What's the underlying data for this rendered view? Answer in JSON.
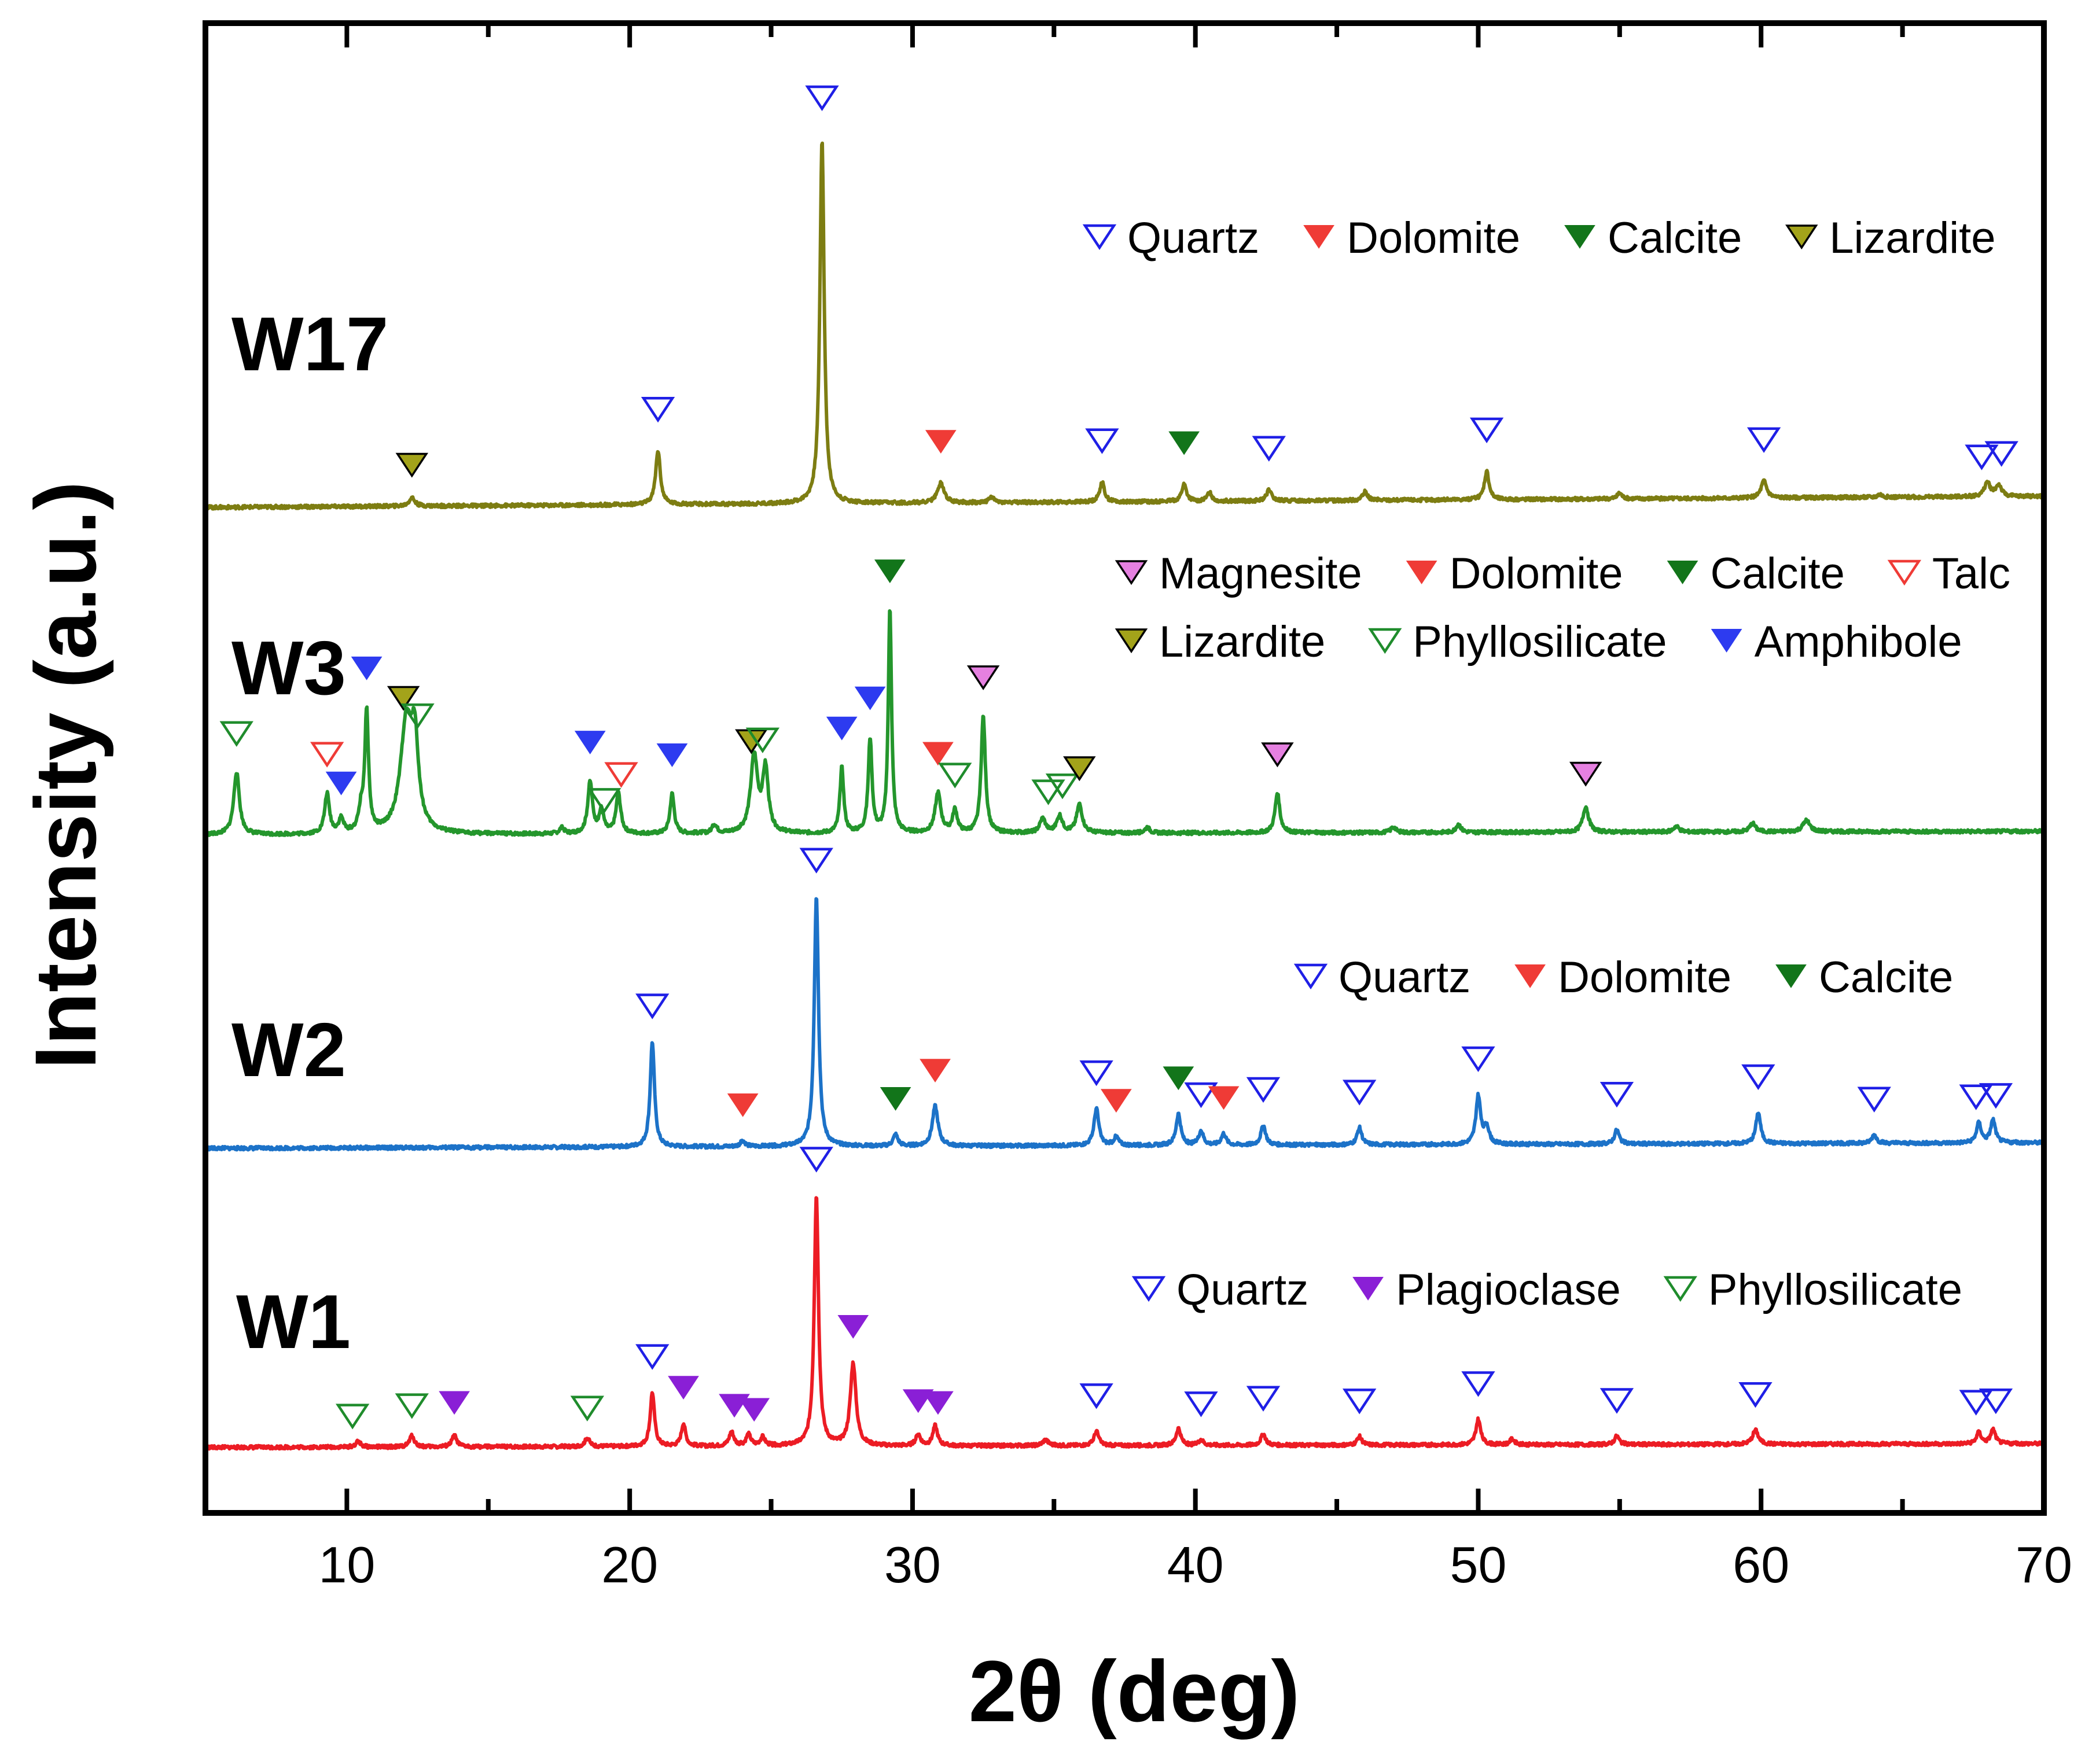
{
  "chart_data": {
    "type": "line",
    "title": "",
    "xlabel": "2θ (deg)",
    "ylabel": "Intensity (a.u.)",
    "xlim": [
      5,
      70
    ],
    "xticks": [
      10,
      20,
      30,
      40,
      50,
      60,
      70
    ],
    "grid": false,
    "colors": {
      "Quartz": "#1f1fe6",
      "Dolomite": "#ef3b36",
      "Calcite": "#12751a",
      "Lizardite": "#a3a31a",
      "Magnesite": "#e580e0",
      "Talc": "#ef3b36",
      "Phyllosilicate": "#1f8c2c",
      "Amphibole": "#2d3bf0",
      "Plagioclase": "#8a1fd6"
    },
    "series": [
      {
        "name": "W17",
        "color": "#7d7d12",
        "baseline": 3.35,
        "slope": 0.0006,
        "peaks": [
          [
            12.3,
            0.03,
            0.12
          ],
          [
            21.0,
            0.19,
            0.1
          ],
          [
            26.8,
            1.28,
            0.09
          ],
          [
            31.0,
            0.07,
            0.14
          ],
          [
            32.8,
            0.02,
            0.1
          ],
          [
            36.7,
            0.07,
            0.1
          ],
          [
            39.6,
            0.06,
            0.1
          ],
          [
            40.5,
            0.03,
            0.1
          ],
          [
            42.6,
            0.04,
            0.1
          ],
          [
            46.0,
            0.03,
            0.1
          ],
          [
            50.3,
            0.1,
            0.1
          ],
          [
            55.0,
            0.02,
            0.1
          ],
          [
            60.1,
            0.06,
            0.12
          ],
          [
            64.2,
            0.01,
            0.1
          ],
          [
            68.0,
            0.05,
            0.12
          ],
          [
            68.4,
            0.04,
            0.12
          ]
        ],
        "markers": [
          {
            "x": 12.3,
            "phase": "Lizardite",
            "lift": 0.06
          },
          {
            "x": 21.0,
            "phase": "Quartz",
            "lift": 0.09
          },
          {
            "x": 26.8,
            "phase": "Quartz",
            "lift": 0.09
          },
          {
            "x": 31.0,
            "phase": "Dolomite",
            "lift": 0.09
          },
          {
            "x": 36.7,
            "phase": "Quartz",
            "lift": 0.09
          },
          {
            "x": 39.6,
            "phase": "Calcite",
            "lift": 0.09
          },
          {
            "x": 42.6,
            "phase": "Quartz",
            "lift": 0.09
          },
          {
            "x": 50.3,
            "phase": "Quartz",
            "lift": 0.09
          },
          {
            "x": 60.1,
            "phase": "Quartz",
            "lift": 0.09
          },
          {
            "x": 67.8,
            "phase": "Quartz",
            "lift": 0.07
          },
          {
            "x": 68.5,
            "phase": "Quartz",
            "lift": 0.07
          }
        ]
      },
      {
        "name": "W3",
        "color": "#24962c",
        "baseline": 2.2,
        "slope": 0.0002,
        "peaks": [
          [
            6.1,
            0.22,
            0.12
          ],
          [
            9.3,
            0.14,
            0.1
          ],
          [
            9.8,
            0.05,
            0.1
          ],
          [
            10.5,
            0.07,
            0.1
          ],
          [
            10.7,
            0.42,
            0.08
          ],
          [
            12.1,
            0.38,
            0.25
          ],
          [
            12.4,
            0.28,
            0.15
          ],
          [
            17.6,
            0.02,
            0.1
          ],
          [
            18.6,
            0.18,
            0.1
          ],
          [
            19.0,
            0.08,
            0.1
          ],
          [
            19.6,
            0.14,
            0.1
          ],
          [
            21.5,
            0.14,
            0.09
          ],
          [
            23.0,
            0.03,
            0.1
          ],
          [
            24.4,
            0.27,
            0.15
          ],
          [
            24.8,
            0.22,
            0.12
          ],
          [
            27.5,
            0.23,
            0.08
          ],
          [
            28.5,
            0.33,
            0.08
          ],
          [
            29.2,
            0.79,
            0.07
          ],
          [
            30.9,
            0.14,
            0.12
          ],
          [
            31.5,
            0.08,
            0.1
          ],
          [
            32.5,
            0.41,
            0.09
          ],
          [
            34.6,
            0.05,
            0.12
          ],
          [
            35.2,
            0.06,
            0.12
          ],
          [
            35.9,
            0.1,
            0.12
          ],
          [
            38.3,
            0.02,
            0.1
          ],
          [
            42.9,
            0.14,
            0.1
          ],
          [
            47.0,
            0.02,
            0.1
          ],
          [
            49.3,
            0.03,
            0.1
          ],
          [
            53.8,
            0.09,
            0.12
          ],
          [
            57.0,
            0.02,
            0.12
          ],
          [
            59.7,
            0.03,
            0.12
          ],
          [
            61.6,
            0.04,
            0.15
          ]
        ],
        "markers": [
          {
            "x": 6.1,
            "phase": "Phyllosilicate",
            "lift": 0.08
          },
          {
            "x": 9.3,
            "phase": "Talc",
            "lift": 0.08
          },
          {
            "x": 9.8,
            "phase": "Amphibole",
            "lift": 0.06
          },
          {
            "x": 10.7,
            "phase": "Amphibole",
            "lift": 0.08
          },
          {
            "x": 12.0,
            "phase": "Lizardite",
            "lift": 0.06
          },
          {
            "x": 12.5,
            "phase": "Phyllosilicate",
            "lift": 0.06
          },
          {
            "x": 18.6,
            "phase": "Amphibole",
            "lift": 0.08
          },
          {
            "x": 19.1,
            "phase": "Phyllosilicate",
            "lift": 0.01
          },
          {
            "x": 19.7,
            "phase": "Talc",
            "lift": 0.08
          },
          {
            "x": 21.5,
            "phase": "Amphibole",
            "lift": 0.08
          },
          {
            "x": 24.3,
            "phase": "Lizardite",
            "lift": 0.07
          },
          {
            "x": 24.7,
            "phase": "Phyllosilicate",
            "lift": 0.09
          },
          {
            "x": 27.5,
            "phase": "Amphibole",
            "lift": 0.08
          },
          {
            "x": 28.5,
            "phase": "Amphibole",
            "lift": 0.08
          },
          {
            "x": 29.2,
            "phase": "Calcite",
            "lift": 0.07
          },
          {
            "x": 30.9,
            "phase": "Dolomite",
            "lift": 0.08
          },
          {
            "x": 31.5,
            "phase": "Phyllosilicate",
            "lift": 0.06
          },
          {
            "x": 32.5,
            "phase": "Magnesite",
            "lift": 0.08
          },
          {
            "x": 34.8,
            "phase": "Phyllosilicate",
            "lift": 0.07
          },
          {
            "x": 35.3,
            "phase": "Phyllosilicate",
            "lift": 0.07
          },
          {
            "x": 35.9,
            "phase": "Lizardite",
            "lift": 0.07
          },
          {
            "x": 42.9,
            "phase": "Magnesite",
            "lift": 0.08
          },
          {
            "x": 53.8,
            "phase": "Magnesite",
            "lift": 0.06
          }
        ]
      },
      {
        "name": "W2",
        "color": "#1c72c8",
        "baseline": 1.1,
        "slope": 0.0003,
        "peaks": [
          [
            20.8,
            0.37,
            0.09
          ],
          [
            24.0,
            0.02,
            0.1
          ],
          [
            26.6,
            0.88,
            0.09
          ],
          [
            29.4,
            0.04,
            0.1
          ],
          [
            30.8,
            0.14,
            0.12
          ],
          [
            36.5,
            0.13,
            0.1
          ],
          [
            37.2,
            0.03,
            0.1
          ],
          [
            39.4,
            0.11,
            0.1
          ],
          [
            40.2,
            0.05,
            0.1
          ],
          [
            41.0,
            0.04,
            0.1
          ],
          [
            42.4,
            0.07,
            0.1
          ],
          [
            45.8,
            0.06,
            0.1
          ],
          [
            50.0,
            0.17,
            0.1
          ],
          [
            50.3,
            0.06,
            0.1
          ],
          [
            54.9,
            0.05,
            0.1
          ],
          [
            59.9,
            0.11,
            0.1
          ],
          [
            64.0,
            0.03,
            0.1
          ],
          [
            67.7,
            0.07,
            0.1
          ],
          [
            68.2,
            0.08,
            0.1
          ]
        ],
        "markers": [
          {
            "x": 20.8,
            "phase": "Quartz",
            "lift": 0.07
          },
          {
            "x": 24.0,
            "phase": "Dolomite",
            "lift": 0.07
          },
          {
            "x": 26.6,
            "phase": "Quartz",
            "lift": 0.07
          },
          {
            "x": 29.4,
            "phase": "Calcite",
            "lift": 0.07
          },
          {
            "x": 30.8,
            "phase": "Dolomite",
            "lift": 0.07
          },
          {
            "x": 36.5,
            "phase": "Quartz",
            "lift": 0.07
          },
          {
            "x": 37.2,
            "phase": "Dolomite",
            "lift": 0.07
          },
          {
            "x": 39.4,
            "phase": "Calcite",
            "lift": 0.07
          },
          {
            "x": 40.2,
            "phase": "Quartz",
            "lift": 0.07
          },
          {
            "x": 41.0,
            "phase": "Dolomite",
            "lift": 0.07
          },
          {
            "x": 42.4,
            "phase": "Quartz",
            "lift": 0.07
          },
          {
            "x": 45.8,
            "phase": "Quartz",
            "lift": 0.07
          },
          {
            "x": 50.0,
            "phase": "Quartz",
            "lift": 0.07
          },
          {
            "x": 54.9,
            "phase": "Quartz",
            "lift": 0.07
          },
          {
            "x": 59.9,
            "phase": "Quartz",
            "lift": 0.07
          },
          {
            "x": 64.0,
            "phase": "Quartz",
            "lift": 0.07
          },
          {
            "x": 67.6,
            "phase": "Quartz",
            "lift": 0.07
          },
          {
            "x": 68.3,
            "phase": "Quartz",
            "lift": 0.07
          }
        ]
      },
      {
        "name": "W1",
        "color": "#ec1c24",
        "baseline": 0.05,
        "slope": 0.0002,
        "peaks": [
          [
            10.4,
            0.02,
            0.1
          ],
          [
            12.3,
            0.04,
            0.1
          ],
          [
            13.8,
            0.04,
            0.1
          ],
          [
            18.5,
            0.03,
            0.1
          ],
          [
            20.8,
            0.19,
            0.09
          ],
          [
            21.9,
            0.08,
            0.09
          ],
          [
            23.6,
            0.05,
            0.1
          ],
          [
            24.2,
            0.04,
            0.1
          ],
          [
            24.7,
            0.03,
            0.1
          ],
          [
            26.6,
            0.88,
            0.09
          ],
          [
            27.9,
            0.29,
            0.12
          ],
          [
            30.2,
            0.04,
            0.1
          ],
          [
            30.8,
            0.07,
            0.1
          ],
          [
            34.7,
            0.02,
            0.12
          ],
          [
            36.5,
            0.05,
            0.1
          ],
          [
            39.4,
            0.06,
            0.1
          ],
          [
            40.2,
            0.02,
            0.1
          ],
          [
            42.4,
            0.04,
            0.1
          ],
          [
            45.8,
            0.03,
            0.1
          ],
          [
            50.0,
            0.09,
            0.1
          ],
          [
            51.2,
            0.02,
            0.1
          ],
          [
            54.9,
            0.03,
            0.1
          ],
          [
            59.8,
            0.05,
            0.12
          ],
          [
            67.7,
            0.04,
            0.1
          ],
          [
            68.2,
            0.05,
            0.1
          ]
        ],
        "markers": [
          {
            "x": 10.2,
            "phase": "Phyllosilicate",
            "lift": 0.05
          },
          {
            "x": 12.3,
            "phase": "Phyllosilicate",
            "lift": 0.05
          },
          {
            "x": 13.8,
            "phase": "Plagioclase",
            "lift": 0.06
          },
          {
            "x": 18.5,
            "phase": "Phyllosilicate",
            "lift": 0.05
          },
          {
            "x": 20.8,
            "phase": "Quartz",
            "lift": 0.07
          },
          {
            "x": 21.9,
            "phase": "Plagioclase",
            "lift": 0.07
          },
          {
            "x": 23.7,
            "phase": "Plagioclase",
            "lift": 0.06
          },
          {
            "x": 24.4,
            "phase": "Plagioclase",
            "lift": 0.06
          },
          {
            "x": 26.6,
            "phase": "Quartz",
            "lift": 0.07
          },
          {
            "x": 27.9,
            "phase": "Plagioclase",
            "lift": 0.07
          },
          {
            "x": 30.2,
            "phase": "Plagioclase",
            "lift": 0.06
          },
          {
            "x": 30.9,
            "phase": "Plagioclase",
            "lift": 0.06
          },
          {
            "x": 36.5,
            "phase": "Quartz",
            "lift": 0.07
          },
          {
            "x": 40.2,
            "phase": "Quartz",
            "lift": 0.07
          },
          {
            "x": 42.4,
            "phase": "Quartz",
            "lift": 0.07
          },
          {
            "x": 45.8,
            "phase": "Quartz",
            "lift": 0.07
          },
          {
            "x": 50.0,
            "phase": "Quartz",
            "lift": 0.07
          },
          {
            "x": 54.9,
            "phase": "Quartz",
            "lift": 0.07
          },
          {
            "x": 59.8,
            "phase": "Quartz",
            "lift": 0.07
          },
          {
            "x": 67.6,
            "phase": "Quartz",
            "lift": 0.07
          },
          {
            "x": 68.3,
            "phase": "Quartz",
            "lift": 0.07
          }
        ]
      }
    ],
    "legends": [
      {
        "series": "W17",
        "rows": [
          [
            "Quartz",
            "Dolomite",
            "Calcite",
            "Lizardite"
          ]
        ]
      },
      {
        "series": "W3",
        "rows": [
          [
            "Magnesite",
            "Dolomite",
            "Calcite",
            "Talc"
          ],
          [
            "Lizardite",
            "Phyllosilicate",
            "Amphibole"
          ]
        ]
      },
      {
        "series": "W2",
        "rows": [
          [
            "Quartz",
            "Dolomite",
            "Calcite"
          ]
        ]
      },
      {
        "series": "W1",
        "rows": [
          [
            "Quartz",
            "Plagioclase",
            "Phyllosilicate"
          ]
        ]
      }
    ]
  }
}
